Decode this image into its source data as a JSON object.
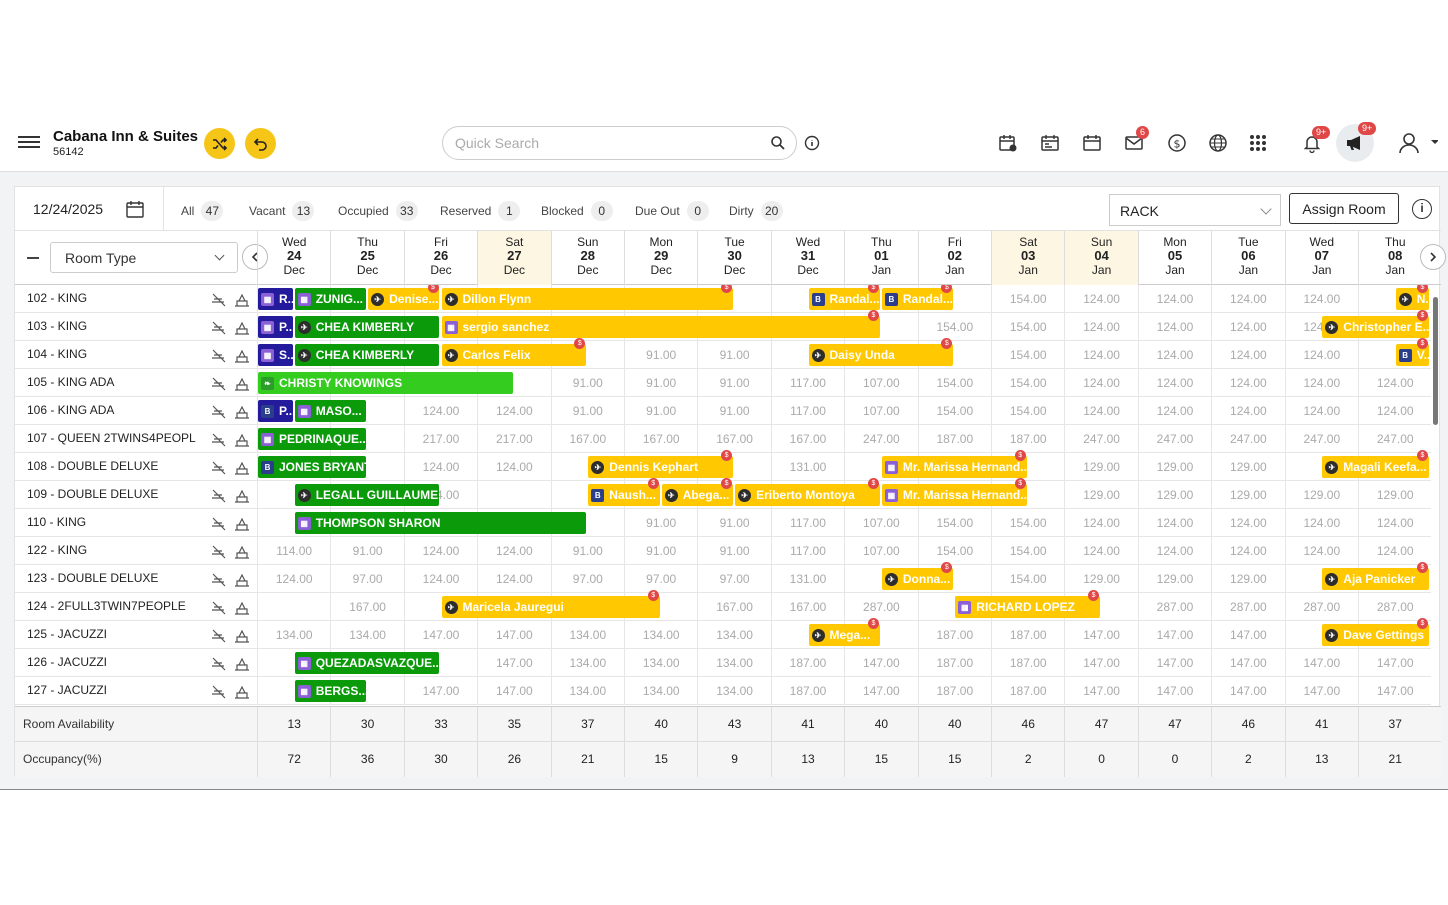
{
  "header": {
    "hotel_name": "Cabana Inn & Suites",
    "hotel_id": "56142",
    "search_placeholder": "Quick Search",
    "mail_badge": "6",
    "notif_badge": "9+",
    "announce_badge": "9+"
  },
  "filters": {
    "date": "12/24/2025",
    "items": [
      {
        "label": "All",
        "count": "47"
      },
      {
        "label": "Vacant",
        "count": "13"
      },
      {
        "label": "Occupied",
        "count": "33"
      },
      {
        "label": "Reserved",
        "count": "1"
      },
      {
        "label": "Blocked",
        "count": "0"
      },
      {
        "label": "Due Out",
        "count": "0"
      },
      {
        "label": "Dirty",
        "count": "20"
      }
    ],
    "rate_plan": "RACK",
    "assign_label": "Assign Room"
  },
  "grid": {
    "room_type_select": "Room Type",
    "dates": [
      {
        "dow": "Wed",
        "day": "24",
        "mon": "Dec",
        "weekend": false
      },
      {
        "dow": "Thu",
        "day": "25",
        "mon": "Dec",
        "weekend": false
      },
      {
        "dow": "Fri",
        "day": "26",
        "mon": "Dec",
        "weekend": false
      },
      {
        "dow": "Sat",
        "day": "27",
        "mon": "Dec",
        "weekend": true
      },
      {
        "dow": "Sun",
        "day": "28",
        "mon": "Dec",
        "weekend": false
      },
      {
        "dow": "Mon",
        "day": "29",
        "mon": "Dec",
        "weekend": false
      },
      {
        "dow": "Tue",
        "day": "30",
        "mon": "Dec",
        "weekend": false
      },
      {
        "dow": "Wed",
        "day": "31",
        "mon": "Dec",
        "weekend": false
      },
      {
        "dow": "Thu",
        "day": "01",
        "mon": "Jan",
        "weekend": false
      },
      {
        "dow": "Fri",
        "day": "02",
        "mon": "Jan",
        "weekend": false
      },
      {
        "dow": "Sat",
        "day": "03",
        "mon": "Jan",
        "weekend": true
      },
      {
        "dow": "Sun",
        "day": "04",
        "mon": "Jan",
        "weekend": true
      },
      {
        "dow": "Mon",
        "day": "05",
        "mon": "Jan",
        "weekend": false
      },
      {
        "dow": "Tue",
        "day": "06",
        "mon": "Jan",
        "weekend": false
      },
      {
        "dow": "Wed",
        "day": "07",
        "mon": "Jan",
        "weekend": false
      },
      {
        "dow": "Thu",
        "day": "08",
        "mon": "Jan",
        "weekend": false
      }
    ],
    "rows": [
      {
        "room": "102 - KING",
        "rates": [
          "",
          "",
          "",
          "",
          "",
          "",
          "",
          "",
          "",
          "",
          "154.00",
          "124.00",
          "124.00",
          "124.00",
          "124.00",
          ""
        ],
        "bookings": [
          {
            "name": "R...",
            "start": 0,
            "len": 0.5,
            "color": "b",
            "src": "h"
          },
          {
            "name": "ZUNIG...",
            "start": 0.5,
            "len": 1,
            "color": "g",
            "src": "h"
          },
          {
            "name": "Denise...",
            "start": 1.5,
            "len": 1,
            "color": "y",
            "src": "a",
            "dollar": true
          },
          {
            "name": "Dillon Flynn",
            "start": 2.5,
            "len": 4,
            "color": "y",
            "src": "a",
            "dollar": true
          },
          {
            "name": "Randal...",
            "start": 7.5,
            "len": 1,
            "color": "y",
            "src": "bb",
            "dollar": true
          },
          {
            "name": "Randal...",
            "start": 8.5,
            "len": 1,
            "color": "y",
            "src": "bb",
            "dollar": true
          },
          {
            "name": "N...",
            "start": 15.5,
            "len": 0.5,
            "color": "y",
            "src": "a",
            "dollar": true
          }
        ]
      },
      {
        "room": "103 - KING",
        "rates": [
          "",
          "",
          "",
          "",
          "",
          "",
          "",
          "",
          "",
          "154.00",
          "154.00",
          "124.00",
          "124.00",
          "124.00",
          "124.00",
          ""
        ],
        "bookings": [
          {
            "name": "P...",
            "start": 0,
            "len": 0.5,
            "color": "b",
            "src": "h"
          },
          {
            "name": "CHEA KIMBERLY",
            "start": 0.5,
            "len": 2,
            "color": "g",
            "src": "a"
          },
          {
            "name": "sergio sanchez",
            "start": 2.5,
            "len": 6,
            "color": "y",
            "src": "h",
            "dollar": true
          },
          {
            "name": "Christopher E...",
            "start": 14.5,
            "len": 1.5,
            "color": "y",
            "src": "a",
            "dollar": true
          }
        ]
      },
      {
        "room": "104 - KING",
        "rates": [
          "",
          "",
          "",
          "",
          "",
          "91.00",
          "91.00",
          "",
          "",
          "",
          "154.00",
          "124.00",
          "124.00",
          "124.00",
          "124.00",
          ""
        ],
        "bookings": [
          {
            "name": "S...",
            "start": 0,
            "len": 0.5,
            "color": "b",
            "src": "h"
          },
          {
            "name": "CHEA KIMBERLY",
            "start": 0.5,
            "len": 2,
            "color": "g",
            "src": "a"
          },
          {
            "name": "Carlos Felix",
            "start": 2.5,
            "len": 2,
            "color": "y",
            "src": "a",
            "dollar": true
          },
          {
            "name": "Daisy Unda",
            "start": 7.5,
            "len": 2,
            "color": "y",
            "src": "a",
            "dollar": true
          },
          {
            "name": "V...",
            "start": 15.5,
            "len": 0.5,
            "color": "y",
            "src": "bb",
            "dollar": true
          }
        ]
      },
      {
        "room": "105 - KING ADA",
        "rates": [
          "",
          "",
          "",
          "",
          "91.00",
          "91.00",
          "91.00",
          "117.00",
          "107.00",
          "154.00",
          "154.00",
          "124.00",
          "124.00",
          "124.00",
          "124.00",
          "124.00"
        ],
        "bookings": [
          {
            "name": "CHRISTY KNOWINGS",
            "start": 0,
            "len": 3.5,
            "color": "lg",
            "src": "l"
          }
        ]
      },
      {
        "room": "106 - KING ADA",
        "rates": [
          "",
          "",
          "124.00",
          "124.00",
          "91.00",
          "91.00",
          "91.00",
          "117.00",
          "107.00",
          "154.00",
          "154.00",
          "124.00",
          "124.00",
          "124.00",
          "124.00",
          "124.00"
        ],
        "bookings": [
          {
            "name": "P...",
            "start": 0,
            "len": 0.5,
            "color": "b",
            "src": "bb"
          },
          {
            "name": "MASO...",
            "start": 0.5,
            "len": 1,
            "color": "g",
            "src": "h"
          }
        ]
      },
      {
        "room": "107 - QUEEN 2TWINS4PEOPL",
        "rates": [
          "",
          "",
          "217.00",
          "217.00",
          "167.00",
          "167.00",
          "167.00",
          "167.00",
          "247.00",
          "187.00",
          "187.00",
          "247.00",
          "247.00",
          "247.00",
          "247.00",
          "247.00"
        ],
        "bookings": [
          {
            "name": "PEDRINAQUE...",
            "start": 0,
            "len": 1.5,
            "color": "g",
            "src": "h"
          }
        ]
      },
      {
        "room": "108 - DOUBLE DELUXE",
        "rates": [
          "",
          "",
          "124.00",
          "124.00",
          "",
          "",
          "",
          "131.00",
          "",
          "",
          "",
          "129.00",
          "129.00",
          "129.00",
          "",
          ""
        ],
        "bookings": [
          {
            "name": "JONES BRYANT",
            "start": 0,
            "len": 1.5,
            "color": "g",
            "src": "bb"
          },
          {
            "name": "Dennis Kephart",
            "start": 4.5,
            "len": 2,
            "color": "y",
            "src": "a",
            "dollar": true
          },
          {
            "name": "Mr. Marissa Hernand...",
            "start": 8.5,
            "len": 2,
            "color": "y",
            "src": "h",
            "dollar": true
          },
          {
            "name": "Magali Keefa...",
            "start": 14.5,
            "len": 1.5,
            "color": "y",
            "src": "a",
            "dollar": true
          }
        ]
      },
      {
        "room": "109 - DOUBLE DELUXE",
        "rates": [
          "",
          "",
          "124.00",
          "",
          "",
          "",
          "",
          "",
          "",
          "",
          "",
          "129.00",
          "129.00",
          "129.00",
          "129.00",
          "129.00"
        ],
        "bookings": [
          {
            "name": "LEGALL GUILLAUME",
            "start": 0.5,
            "len": 2,
            "color": "g",
            "src": "a"
          },
          {
            "name": "Naush...",
            "start": 4.5,
            "len": 1,
            "color": "y",
            "src": "bb",
            "dollar": true
          },
          {
            "name": "Abega...",
            "start": 5.5,
            "len": 1,
            "color": "y",
            "src": "a",
            "dollar": true
          },
          {
            "name": "Eriberto Montoya",
            "start": 6.5,
            "len": 2,
            "color": "y",
            "src": "a",
            "dollar": true
          },
          {
            "name": "Mr. Marissa Hernand...",
            "start": 8.5,
            "len": 2,
            "color": "y",
            "src": "h",
            "dollar": true
          }
        ]
      },
      {
        "room": "110 - KING",
        "rates": [
          "",
          "",
          "",
          "",
          "",
          "91.00",
          "91.00",
          "117.00",
          "107.00",
          "154.00",
          "154.00",
          "124.00",
          "124.00",
          "124.00",
          "124.00",
          "124.00"
        ],
        "bookings": [
          {
            "name": "THOMPSON SHARON",
            "start": 0.5,
            "len": 4,
            "color": "g",
            "src": "h"
          }
        ]
      },
      {
        "room": "122 - KING",
        "rates": [
          "114.00",
          "91.00",
          "124.00",
          "124.00",
          "91.00",
          "91.00",
          "91.00",
          "117.00",
          "107.00",
          "154.00",
          "154.00",
          "124.00",
          "124.00",
          "124.00",
          "124.00",
          "124.00"
        ],
        "bookings": []
      },
      {
        "room": "123 - DOUBLE DELUXE",
        "rates": [
          "124.00",
          "97.00",
          "124.00",
          "124.00",
          "97.00",
          "97.00",
          "97.00",
          "131.00",
          "",
          "",
          "154.00",
          "129.00",
          "129.00",
          "129.00",
          "",
          ""
        ],
        "bookings": [
          {
            "name": "Donna...",
            "start": 8.5,
            "len": 1,
            "color": "y",
            "src": "a",
            "dollar": true
          },
          {
            "name": "Aja Panicker",
            "start": 14.5,
            "len": 1.5,
            "color": "y",
            "src": "a",
            "dollar": true
          }
        ]
      },
      {
        "room": "124 - 2FULL3TWIN7PEOPLE",
        "rates": [
          "",
          "167.00",
          "",
          "",
          "",
          "",
          "167.00",
          "167.00",
          "287.00",
          "",
          "",
          "",
          "287.00",
          "287.00",
          "287.00",
          "287.00"
        ],
        "bookings": [
          {
            "name": "Maricela Jauregui",
            "start": 2.5,
            "len": 3,
            "color": "y",
            "src": "a",
            "dollar": true
          },
          {
            "name": "RICHARD LOPEZ",
            "start": 9.5,
            "len": 2,
            "color": "y",
            "src": "h",
            "dollar": true
          }
        ]
      },
      {
        "room": "125 - JACUZZI",
        "rates": [
          "134.00",
          "134.00",
          "147.00",
          "147.00",
          "134.00",
          "134.00",
          "134.00",
          "",
          "",
          "187.00",
          "187.00",
          "147.00",
          "147.00",
          "147.00",
          "",
          ""
        ],
        "bookings": [
          {
            "name": "Mega...",
            "start": 7.5,
            "len": 1,
            "color": "y",
            "src": "a",
            "dollar": true
          },
          {
            "name": "Dave Gettings",
            "start": 14.5,
            "len": 1.5,
            "color": "y",
            "src": "a",
            "dollar": true
          }
        ]
      },
      {
        "room": "126 - JACUZZI",
        "rates": [
          "",
          "",
          "",
          "147.00",
          "134.00",
          "134.00",
          "134.00",
          "187.00",
          "147.00",
          "187.00",
          "187.00",
          "147.00",
          "147.00",
          "147.00",
          "147.00",
          "147.00"
        ],
        "bookings": [
          {
            "name": "QUEZADASVAZQUE...",
            "start": 0.5,
            "len": 2,
            "color": "g",
            "src": "h"
          }
        ]
      },
      {
        "room": "127 - JACUZZI",
        "rates": [
          "",
          "",
          "147.00",
          "147.00",
          "134.00",
          "134.00",
          "134.00",
          "187.00",
          "147.00",
          "187.00",
          "187.00",
          "147.00",
          "147.00",
          "147.00",
          "147.00",
          "147.00"
        ],
        "bookings": [
          {
            "name": "BERGS...",
            "start": 0.5,
            "len": 1,
            "color": "g",
            "src": "h"
          }
        ]
      }
    ]
  },
  "footer": {
    "availability_label": "Room Availability",
    "availability": [
      "13",
      "30",
      "33",
      "35",
      "37",
      "40",
      "43",
      "41",
      "40",
      "40",
      "46",
      "47",
      "47",
      "46",
      "41",
      "37"
    ],
    "occupancy_label": "Occupancy(%)",
    "occupancy": [
      "72",
      "36",
      "30",
      "26",
      "21",
      "15",
      "9",
      "13",
      "15",
      "15",
      "2",
      "0",
      "0",
      "2",
      "13",
      "21"
    ]
  },
  "colors": {
    "accent": "#f5c518",
    "reserved": "#ffc800",
    "checked_in": "#0a9a0a",
    "due_in": "#33cc1f",
    "blocked": "#231a9c"
  },
  "icons": {
    "src_a": "airplane-icon",
    "src_h": "hotel-icon",
    "src_bb": "booking-icon",
    "src_l": "leaf-icon"
  }
}
